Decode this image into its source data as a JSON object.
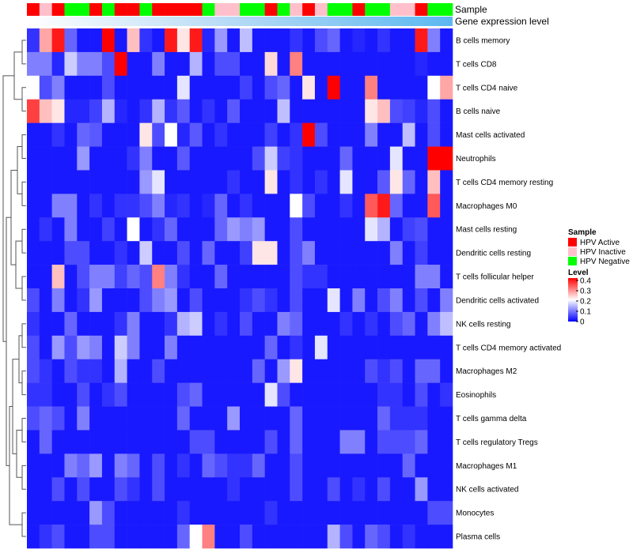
{
  "chart_data": {
    "type": "heatmap",
    "annotation_tracks": [
      "Sample",
      "Gene expression level"
    ],
    "rows": [
      "B cells memory",
      "T cells CD8",
      "T cells CD4 naive",
      "B cells naive",
      "Mast cells activated",
      "Neutrophils",
      "T cells CD4 memory resting",
      "Macrophages M0",
      "Mast cells resting",
      "Dendritic cells resting",
      "T cells follicular helper",
      "Dendritic cells activated",
      "NK cells resting",
      "T cells CD4 memory activated",
      "Macrophages M2",
      "Eosinophils",
      "T cells gamma delta",
      "T cells regulatory  Tregs",
      "Macrophages M1",
      "NK cells activated",
      "Monocytes",
      "Plasma cells"
    ],
    "sample_groups": [
      "A",
      "I",
      "A",
      "N",
      "N",
      "A",
      "N",
      "A",
      "A",
      "N",
      "A",
      "A",
      "A",
      "A",
      "N",
      "I",
      "I",
      "N",
      "N",
      "A",
      "N",
      "I",
      "A",
      "I",
      "N",
      "N",
      "A",
      "N",
      "N",
      "I",
      "I",
      "A",
      "N",
      "N"
    ],
    "expression_gradient": [
      "#ffffff",
      "#b3d9f5",
      "#5bb8f0"
    ],
    "legend": {
      "sample_title": "Sample",
      "sample_items": [
        {
          "label": "HPV Active",
          "color": "#ff0000"
        },
        {
          "label": "HPV Inactive",
          "color": "#ffc0cb"
        },
        {
          "label": "HPV Negative",
          "color": "#00ff00"
        }
      ],
      "level_title": "Level",
      "level_ticks": [
        "0.4",
        "0.3",
        "0.2",
        "0.1",
        "0"
      ],
      "level_range": [
        0,
        0.4
      ],
      "level_colors": [
        "#0000ff",
        "#ffffff",
        "#ff0000"
      ]
    },
    "values": [
      [
        0.04,
        0.27,
        0.38,
        0.08,
        0.02,
        0.02,
        0.4,
        0.02,
        0.25,
        0.04,
        0.02,
        0.38,
        0.22,
        0.38,
        0.03,
        0.12,
        0.02,
        0.15,
        0.02,
        0.02,
        0.02,
        0.04,
        0.02,
        0.06,
        0.08,
        0.02,
        0.03,
        0.02,
        0.04,
        0.02,
        0.02,
        0.38,
        0.1,
        0.02
      ],
      [
        0.1,
        0.1,
        0.03,
        0.16,
        0.1,
        0.1,
        0.06,
        0.4,
        0.02,
        0.02,
        0.1,
        0.02,
        0.02,
        0.14,
        0.02,
        0.06,
        0.06,
        0.02,
        0.02,
        0.23,
        0.02,
        0.3,
        0.02,
        0.02,
        0.02,
        0.02,
        0.02,
        0.02,
        0.02,
        0.02,
        0.02,
        0.03,
        0.02,
        0.02
      ],
      [
        0.2,
        0.06,
        0.1,
        0.02,
        0.02,
        0.02,
        0.06,
        0.02,
        0.02,
        0.02,
        0.02,
        0.02,
        0.18,
        0.02,
        0.02,
        0.02,
        0.02,
        0.05,
        0.02,
        0.06,
        0.08,
        0.02,
        0.22,
        0.02,
        0.4,
        0.02,
        0.02,
        0.3,
        0.02,
        0.02,
        0.02,
        0.02,
        0.2,
        0.27
      ],
      [
        0.35,
        0.25,
        0.22,
        0.03,
        0.03,
        0.05,
        0.14,
        0.03,
        0.02,
        0.04,
        0.14,
        0.04,
        0.07,
        0.02,
        0.04,
        0.02,
        0.07,
        0.02,
        0.02,
        0.02,
        0.15,
        0.02,
        0.02,
        0.02,
        0.02,
        0.02,
        0.02,
        0.22,
        0.25,
        0.06,
        0.05,
        0.03,
        0.06,
        0.02
      ],
      [
        0.02,
        0.02,
        0.04,
        0.02,
        0.08,
        0.07,
        0.02,
        0.02,
        0.02,
        0.22,
        0.06,
        0.2,
        0.03,
        0.07,
        0.02,
        0.04,
        0.02,
        0.02,
        0.02,
        0.05,
        0.02,
        0.04,
        0.4,
        0.06,
        0.02,
        0.02,
        0.02,
        0.1,
        0.02,
        0.02,
        0.15,
        0.02,
        0.06,
        0.02
      ],
      [
        0.02,
        0.02,
        0.02,
        0.02,
        0.12,
        0.02,
        0.02,
        0.02,
        0.04,
        0.1,
        0.02,
        0.02,
        0.07,
        0.02,
        0.02,
        0.02,
        0.02,
        0.02,
        0.06,
        0.16,
        0.05,
        0.04,
        0.02,
        0.02,
        0.02,
        0.08,
        0.02,
        0.02,
        0.02,
        0.18,
        0.02,
        0.02,
        0.4,
        0.4
      ],
      [
        0.02,
        0.02,
        0.02,
        0.02,
        0.02,
        0.02,
        0.02,
        0.02,
        0.02,
        0.12,
        0.18,
        0.02,
        0.02,
        0.02,
        0.02,
        0.02,
        0.04,
        0.02,
        0.02,
        0.22,
        0.02,
        0.04,
        0.02,
        0.04,
        0.02,
        0.18,
        0.02,
        0.02,
        0.07,
        0.22,
        0.08,
        0.02,
        0.25,
        0.02
      ],
      [
        0.02,
        0.02,
        0.1,
        0.1,
        0.02,
        0.04,
        0.02,
        0.04,
        0.04,
        0.06,
        0.1,
        0.03,
        0.04,
        0.02,
        0.03,
        0.08,
        0.02,
        0.04,
        0.02,
        0.02,
        0.02,
        0.2,
        0.06,
        0.02,
        0.02,
        0.04,
        0.02,
        0.33,
        0.38,
        0.08,
        0.02,
        0.02,
        0.33,
        0.02
      ],
      [
        0.02,
        0.04,
        0.02,
        0.1,
        0.02,
        0.02,
        0.05,
        0.02,
        0.2,
        0.02,
        0.04,
        0.08,
        0.02,
        0.02,
        0.02,
        0.08,
        0.12,
        0.1,
        0.12,
        0.02,
        0.02,
        0.06,
        0.02,
        0.02,
        0.02,
        0.02,
        0.02,
        0.18,
        0.14,
        0.02,
        0.05,
        0.06,
        0.02,
        0.02
      ],
      [
        0.02,
        0.02,
        0.02,
        0.06,
        0.06,
        0.02,
        0.02,
        0.04,
        0.02,
        0.16,
        0.02,
        0.02,
        0.06,
        0.02,
        0.08,
        0.02,
        0.02,
        0.05,
        0.22,
        0.22,
        0.02,
        0.06,
        0.1,
        0.02,
        0.02,
        0.02,
        0.02,
        0.02,
        0.02,
        0.1,
        0.02,
        0.05,
        0.02,
        0.02
      ],
      [
        0.02,
        0.02,
        0.25,
        0.02,
        0.06,
        0.1,
        0.1,
        0.05,
        0.08,
        0.06,
        0.3,
        0.1,
        0.04,
        0.02,
        0.02,
        0.08,
        0.02,
        0.02,
        0.02,
        0.02,
        0.02,
        0.06,
        0.04,
        0.04,
        0.02,
        0.02,
        0.02,
        0.02,
        0.02,
        0.02,
        0.02,
        0.1,
        0.1,
        0.02
      ],
      [
        0.06,
        0.02,
        0.1,
        0.02,
        0.04,
        0.12,
        0.02,
        0.02,
        0.02,
        0.06,
        0.1,
        0.12,
        0.02,
        0.06,
        0.02,
        0.02,
        0.02,
        0.04,
        0.06,
        0.04,
        0.02,
        0.06,
        0.02,
        0.02,
        0.18,
        0.02,
        0.1,
        0.02,
        0.06,
        0.1,
        0.02,
        0.06,
        0.02,
        0.1
      ],
      [
        0.04,
        0.02,
        0.02,
        0.08,
        0.02,
        0.02,
        0.02,
        0.04,
        0.1,
        0.02,
        0.02,
        0.04,
        0.14,
        0.16,
        0.02,
        0.04,
        0.02,
        0.06,
        0.02,
        0.02,
        0.1,
        0.08,
        0.02,
        0.02,
        0.02,
        0.04,
        0.02,
        0.04,
        0.02,
        0.06,
        0.08,
        0.02,
        0.1,
        0.15
      ],
      [
        0.06,
        0.02,
        0.12,
        0.06,
        0.12,
        0.1,
        0.02,
        0.16,
        0.1,
        0.02,
        0.02,
        0.1,
        0.02,
        0.02,
        0.02,
        0.02,
        0.02,
        0.02,
        0.02,
        0.08,
        0.02,
        0.04,
        0.02,
        0.18,
        0.02,
        0.02,
        0.02,
        0.02,
        0.02,
        0.02,
        0.02,
        0.02,
        0.02,
        0.02
      ],
      [
        0.06,
        0.04,
        0.02,
        0.06,
        0.04,
        0.04,
        0.02,
        0.14,
        0.02,
        0.02,
        0.06,
        0.02,
        0.02,
        0.02,
        0.02,
        0.02,
        0.02,
        0.02,
        0.08,
        0.02,
        0.12,
        0.22,
        0.02,
        0.02,
        0.02,
        0.02,
        0.02,
        0.06,
        0.04,
        0.06,
        0.02,
        0.08,
        0.08,
        0.02
      ],
      [
        0.04,
        0.04,
        0.02,
        0.02,
        0.06,
        0.02,
        0.04,
        0.06,
        0.02,
        0.02,
        0.02,
        0.02,
        0.06,
        0.08,
        0.02,
        0.02,
        0.02,
        0.02,
        0.02,
        0.18,
        0.06,
        0.02,
        0.02,
        0.02,
        0.02,
        0.02,
        0.02,
        0.02,
        0.04,
        0.04,
        0.02,
        0.06,
        0.02,
        0.04
      ],
      [
        0.06,
        0.08,
        0.06,
        0.02,
        0.1,
        0.02,
        0.02,
        0.02,
        0.02,
        0.02,
        0.02,
        0.02,
        0.08,
        0.02,
        0.02,
        0.02,
        0.12,
        0.02,
        0.02,
        0.02,
        0.02,
        0.08,
        0.02,
        0.02,
        0.02,
        0.02,
        0.02,
        0.02,
        0.08,
        0.04,
        0.04,
        0.04,
        0.02,
        0.02
      ],
      [
        0.02,
        0.08,
        0.02,
        0.02,
        0.02,
        0.02,
        0.02,
        0.02,
        0.02,
        0.02,
        0.02,
        0.02,
        0.02,
        0.06,
        0.06,
        0.02,
        0.02,
        0.02,
        0.02,
        0.06,
        0.02,
        0.08,
        0.02,
        0.02,
        0.02,
        0.1,
        0.1,
        0.02,
        0.06,
        0.06,
        0.06,
        0.08,
        0.02,
        0.02
      ],
      [
        0.02,
        0.02,
        0.02,
        0.1,
        0.08,
        0.12,
        0.02,
        0.1,
        0.08,
        0.02,
        0.06,
        0.02,
        0.04,
        0.02,
        0.08,
        0.06,
        0.04,
        0.04,
        0.08,
        0.02,
        0.02,
        0.06,
        0.02,
        0.02,
        0.02,
        0.02,
        0.02,
        0.02,
        0.02,
        0.02,
        0.08,
        0.02,
        0.02,
        0.02
      ],
      [
        0.02,
        0.02,
        0.06,
        0.02,
        0.06,
        0.02,
        0.02,
        0.06,
        0.04,
        0.02,
        0.06,
        0.02,
        0.02,
        0.02,
        0.02,
        0.02,
        0.04,
        0.02,
        0.02,
        0.02,
        0.02,
        0.06,
        0.02,
        0.02,
        0.06,
        0.02,
        0.04,
        0.02,
        0.06,
        0.02,
        0.02,
        0.12,
        0.02,
        0.02
      ],
      [
        0.02,
        0.02,
        0.02,
        0.02,
        0.02,
        0.12,
        0.06,
        0.02,
        0.02,
        0.02,
        0.02,
        0.02,
        0.04,
        0.02,
        0.02,
        0.02,
        0.02,
        0.02,
        0.02,
        0.04,
        0.02,
        0.02,
        0.02,
        0.02,
        0.02,
        0.02,
        0.02,
        0.02,
        0.02,
        0.02,
        0.02,
        0.02,
        0.06,
        0.06
      ],
      [
        0.02,
        0.04,
        0.06,
        0.02,
        0.02,
        0.06,
        0.06,
        0.02,
        0.02,
        0.02,
        0.02,
        0.02,
        0.08,
        0.2,
        0.3,
        0.02,
        0.02,
        0.06,
        0.02,
        0.02,
        0.02,
        0.02,
        0.02,
        0.02,
        0.14,
        0.06,
        0.02,
        0.08,
        0.06,
        0.02,
        0.04,
        0.02,
        0.02,
        0.02
      ]
    ]
  }
}
